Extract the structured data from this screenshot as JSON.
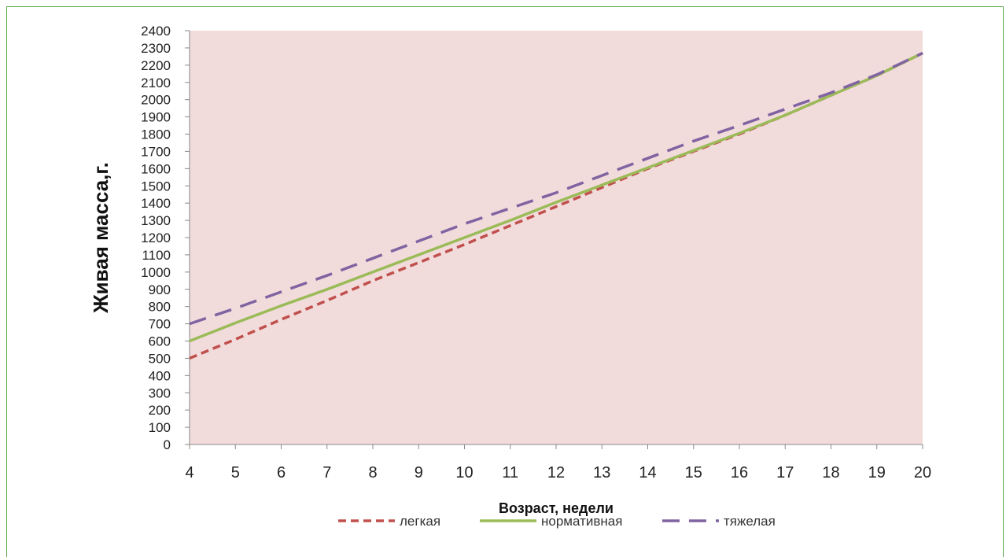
{
  "chart_data": {
    "type": "line",
    "title": "",
    "xlabel": "Возраст, недели",
    "ylabel": "Живая масса,г.",
    "x": [
      4,
      5,
      6,
      7,
      8,
      9,
      10,
      11,
      12,
      13,
      14,
      15,
      16,
      17,
      18,
      19,
      20
    ],
    "xlim": [
      4,
      20
    ],
    "ylim": [
      0,
      2400
    ],
    "ytick_step": 100,
    "grid": false,
    "legend_position": "bottom",
    "plot_background": "#f2dcdb",
    "series": [
      {
        "name": "легкая",
        "color": "#c0504d",
        "dash": "short-dash",
        "values": [
          500,
          610,
          725,
          835,
          950,
          1055,
          1160,
          1270,
          1380,
          1490,
          1600,
          1700,
          1800,
          1910,
          2025,
          2140,
          2270
        ]
      },
      {
        "name": "нормативная",
        "color": "#9bbb59",
        "dash": "solid",
        "values": [
          600,
          705,
          805,
          900,
          1000,
          1100,
          1200,
          1300,
          1405,
          1505,
          1605,
          1705,
          1805,
          1910,
          2025,
          2140,
          2270
        ]
      },
      {
        "name": "тяжелая",
        "color": "#8064a2",
        "dash": "long-dash",
        "values": [
          700,
          790,
          885,
          980,
          1080,
          1180,
          1280,
          1370,
          1460,
          1560,
          1660,
          1760,
          1850,
          1945,
          2040,
          2145,
          2270
        ]
      }
    ]
  }
}
